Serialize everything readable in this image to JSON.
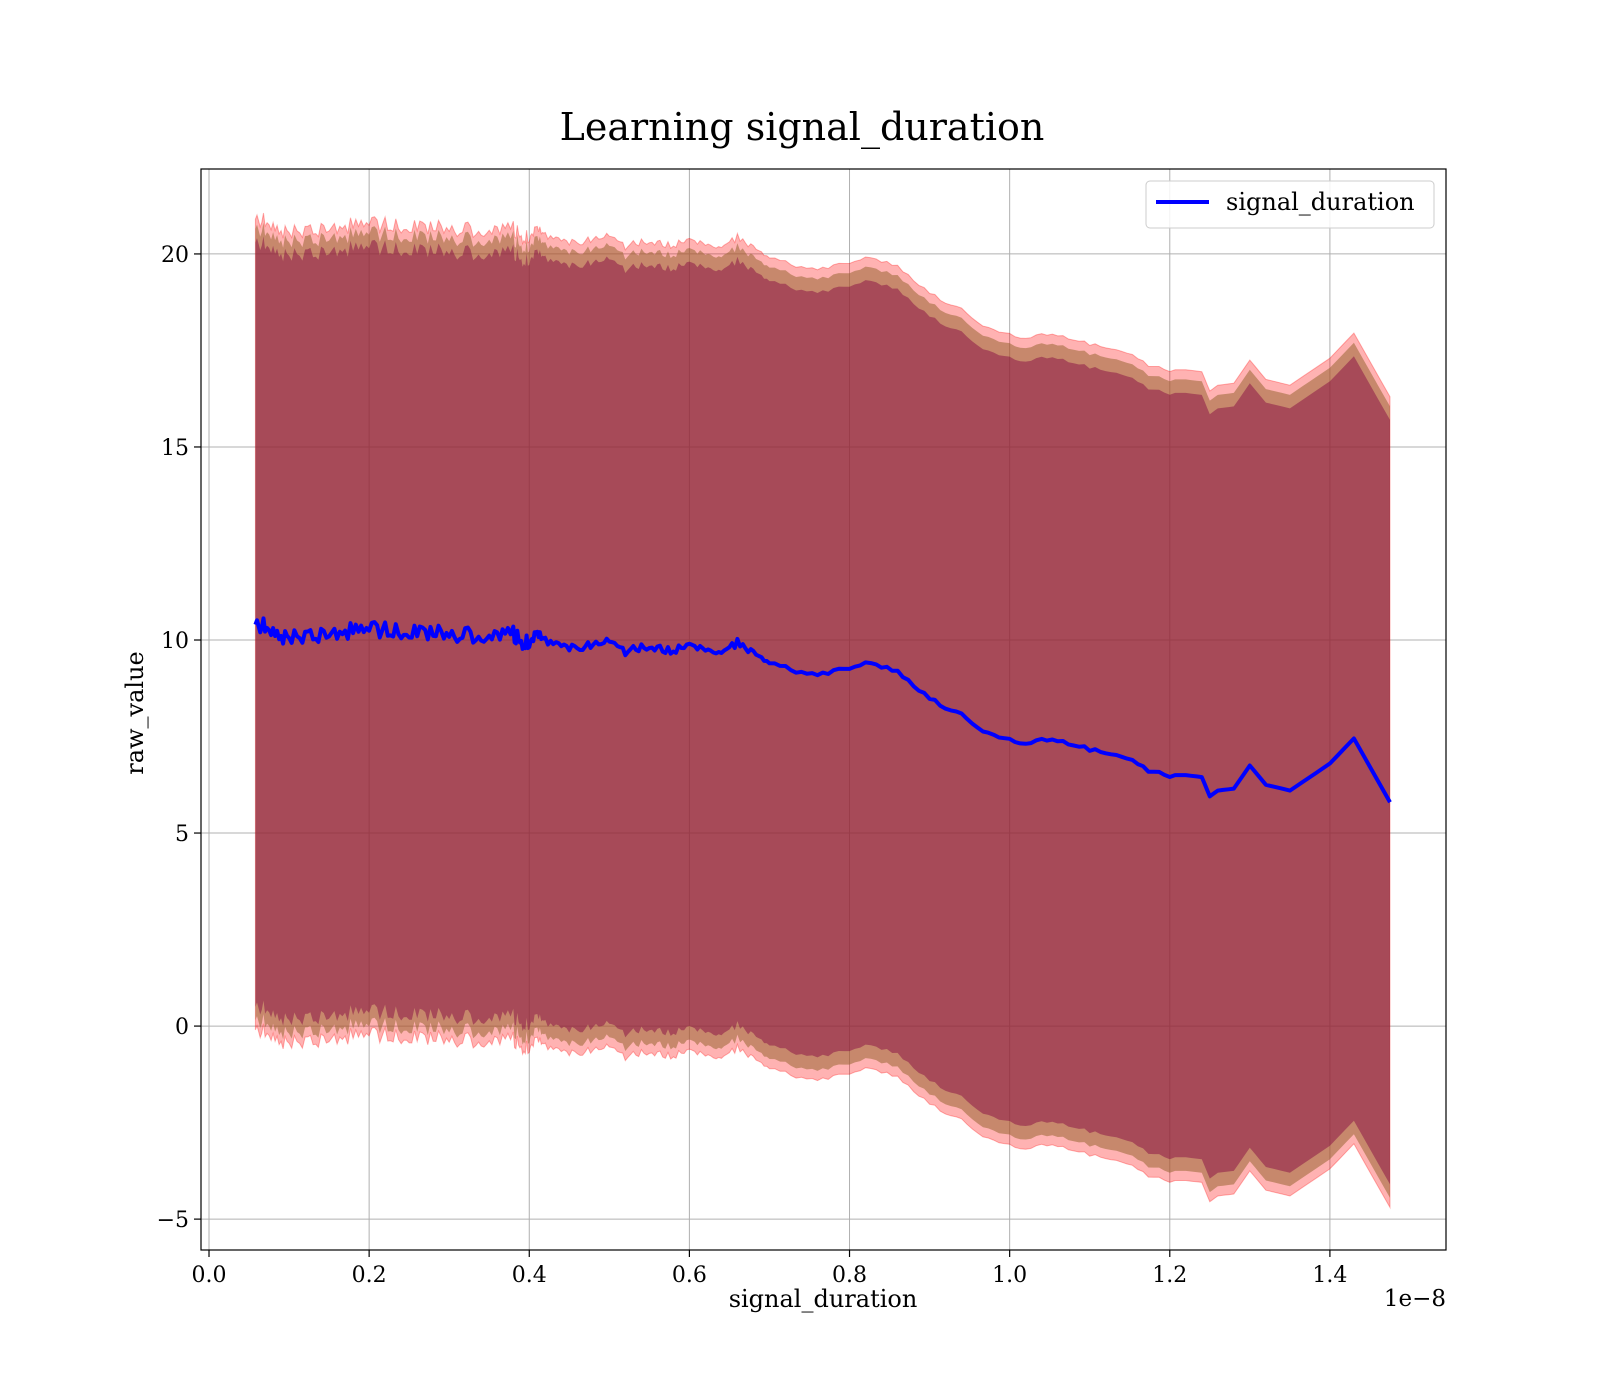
{
  "chart_data": {
    "type": "line",
    "title": "Learning signal_duration",
    "xlabel": "signal_duration",
    "ylabel": "raw_value",
    "x_offset_label": "1e−8",
    "xlim": [
      -0.01,
      1.545
    ],
    "ylim": [
      -5.8,
      22.2
    ],
    "x_ticks": [
      0.0,
      0.2,
      0.4,
      0.6,
      0.8,
      1.0,
      1.2,
      1.4
    ],
    "x_tick_labels": [
      "0.0",
      "0.2",
      "0.4",
      "0.6",
      "0.8",
      "1.0",
      "1.2",
      "1.4"
    ],
    "y_ticks": [
      -5,
      0,
      5,
      10,
      15,
      20
    ],
    "y_tick_labels": [
      "−5",
      "0",
      "5",
      "10",
      "15",
      "20"
    ],
    "grid": true,
    "legend_position": "top-right",
    "colors": {
      "line": "#0000ff",
      "band_outer": "#ff0000",
      "band_middle": "#996633",
      "band_inner": "#800040"
    },
    "series": [
      {
        "name": "signal_duration",
        "x": [
          0.058,
          0.07,
          0.085,
          0.1,
          0.12,
          0.14,
          0.16,
          0.18,
          0.2,
          0.22,
          0.24,
          0.26,
          0.28,
          0.3,
          0.32,
          0.34,
          0.36,
          0.38,
          0.39,
          0.4,
          0.41,
          0.42,
          0.44,
          0.46,
          0.48,
          0.5,
          0.52,
          0.54,
          0.56,
          0.58,
          0.6,
          0.62,
          0.64,
          0.66,
          0.68,
          0.7,
          0.72,
          0.74,
          0.76,
          0.78,
          0.8,
          0.82,
          0.84,
          0.86,
          0.88,
          0.9,
          0.92,
          0.94,
          0.96,
          0.98,
          1.0,
          1.02,
          1.04,
          1.06,
          1.08,
          1.1,
          1.12,
          1.14,
          1.16,
          1.18,
          1.2,
          1.22,
          1.24,
          1.25,
          1.26,
          1.28,
          1.3,
          1.32,
          1.35,
          1.4,
          1.43,
          1.475
        ],
        "values": [
          10.4,
          10.35,
          10.1,
          10.05,
          10.1,
          10.15,
          10.2,
          10.25,
          10.3,
          10.25,
          10.2,
          10.2,
          10.25,
          10.2,
          10.1,
          10.15,
          10.2,
          10.15,
          9.95,
          9.9,
          10.2,
          10.0,
          9.85,
          9.75,
          9.9,
          10.05,
          9.7,
          9.8,
          9.8,
          9.7,
          9.95,
          9.7,
          9.6,
          9.95,
          9.7,
          9.4,
          9.3,
          9.15,
          9.1,
          9.2,
          9.3,
          9.4,
          9.3,
          9.2,
          8.8,
          8.5,
          8.25,
          8.05,
          7.7,
          7.5,
          7.45,
          7.3,
          7.45,
          7.4,
          7.3,
          7.15,
          7.1,
          7.0,
          6.8,
          6.55,
          6.5,
          6.5,
          6.45,
          5.95,
          6.1,
          6.15,
          6.75,
          6.25,
          6.1,
          6.8,
          7.45,
          5.8
        ],
        "band_outer_halfwidth": 10.5,
        "band_middle_halfwidth": 10.25,
        "band_inner_halfwidth": 9.9
      }
    ]
  }
}
